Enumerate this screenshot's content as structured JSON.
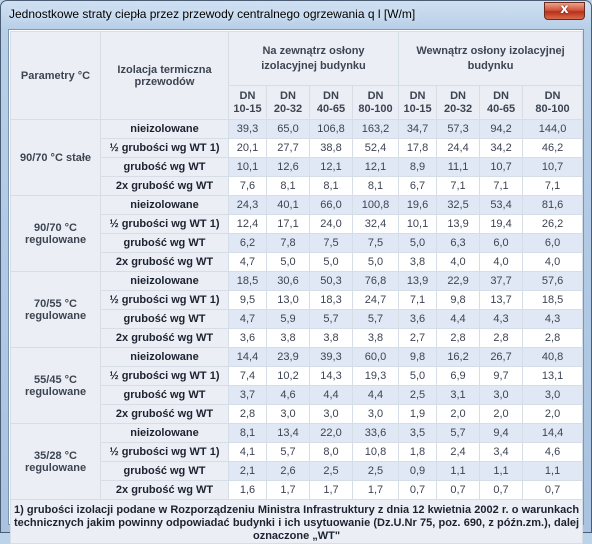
{
  "window": {
    "title": "Jednostkowe straty ciepła przez przewody centralnego ogrzewania q l [W/m]",
    "close_glyph": "x"
  },
  "table": {
    "header_parametry": "Parametry °C",
    "header_izolacja": "Izolacja termiczna przewodów",
    "group_outside": "Na zewnątrz osłony izolacyjnej budynku",
    "group_inside": "Wewnątrz osłony izolacyjnej budynku",
    "dn_columns": [
      {
        "dn": "DN",
        "range": "10-15"
      },
      {
        "dn": "DN",
        "range": "20-32"
      },
      {
        "dn": "DN",
        "range": "40-65"
      },
      {
        "dn": "DN",
        "range": "80-100"
      },
      {
        "dn": "DN",
        "range": "10-15"
      },
      {
        "dn": "DN",
        "range": "20-32"
      },
      {
        "dn": "DN",
        "range": "40-65"
      },
      {
        "dn": "DN",
        "range": "80-100"
      }
    ],
    "groups": [
      {
        "param": "90/70 °C stałe",
        "rows": [
          {
            "izolacja": "nieizolowane",
            "values": [
              "39,3",
              "65,0",
              "106,8",
              "163,2",
              "34,7",
              "57,3",
              "94,2",
              "144,0"
            ]
          },
          {
            "izolacja": "½ grubości wg WT 1)",
            "values": [
              "20,1",
              "27,7",
              "38,8",
              "52,4",
              "17,8",
              "24,4",
              "34,2",
              "46,2"
            ]
          },
          {
            "izolacja": "grubość wg WT",
            "values": [
              "10,1",
              "12,6",
              "12,1",
              "12,1",
              "8,9",
              "11,1",
              "10,7",
              "10,7"
            ]
          },
          {
            "izolacja": "2x grubość wg WT",
            "values": [
              "7,6",
              "8,1",
              "8,1",
              "8,1",
              "6,7",
              "7,1",
              "7,1",
              "7,1"
            ]
          }
        ]
      },
      {
        "param": "90/70 °C regulowane",
        "rows": [
          {
            "izolacja": "nieizolowane",
            "values": [
              "24,3",
              "40,1",
              "66,0",
              "100,8",
              "19,6",
              "32,5",
              "53,4",
              "81,6"
            ]
          },
          {
            "izolacja": "½ grubości wg WT 1)",
            "values": [
              "12,4",
              "17,1",
              "24,0",
              "32,4",
              "10,1",
              "13,9",
              "19,4",
              "26,2"
            ]
          },
          {
            "izolacja": "grubość wg WT",
            "values": [
              "6,2",
              "7,8",
              "7,5",
              "7,5",
              "5,0",
              "6,3",
              "6,0",
              "6,0"
            ]
          },
          {
            "izolacja": "2x grubość wg WT",
            "values": [
              "4,7",
              "5,0",
              "5,0",
              "5,0",
              "3,8",
              "4,0",
              "4,0",
              "4,0"
            ]
          }
        ]
      },
      {
        "param": "70/55 °C regulowane",
        "rows": [
          {
            "izolacja": "nieizolowane",
            "values": [
              "18,5",
              "30,6",
              "50,3",
              "76,8",
              "13,9",
              "22,9",
              "37,7",
              "57,6"
            ]
          },
          {
            "izolacja": "½ grubości wg WT 1)",
            "values": [
              "9,5",
              "13,0",
              "18,3",
              "24,7",
              "7,1",
              "9,8",
              "13,7",
              "18,5"
            ]
          },
          {
            "izolacja": "grubość wg WT",
            "values": [
              "4,7",
              "5,9",
              "5,7",
              "5,7",
              "3,6",
              "4,4",
              "4,3",
              "4,3"
            ]
          },
          {
            "izolacja": "2x grubość wg WT",
            "values": [
              "3,6",
              "3,8",
              "3,8",
              "3,8",
              "2,7",
              "2,8",
              "2,8",
              "2,8"
            ]
          }
        ]
      },
      {
        "param": "55/45 °C regulowane",
        "rows": [
          {
            "izolacja": "nieizolowane",
            "values": [
              "14,4",
              "23,9",
              "39,3",
              "60,0",
              "9,8",
              "16,2",
              "26,7",
              "40,8"
            ]
          },
          {
            "izolacja": "½ grubości wg WT 1)",
            "values": [
              "7,4",
              "10,2",
              "14,3",
              "19,3",
              "5,0",
              "6,9",
              "9,7",
              "13,1"
            ]
          },
          {
            "izolacja": "grubość wg WT",
            "values": [
              "3,7",
              "4,6",
              "4,4",
              "4,4",
              "2,5",
              "3,1",
              "3,0",
              "3,0"
            ]
          },
          {
            "izolacja": "2x grubość wg WT",
            "values": [
              "2,8",
              "3,0",
              "3,0",
              "3,0",
              "1,9",
              "2,0",
              "2,0",
              "2,0"
            ]
          }
        ]
      },
      {
        "param": "35/28 °C regulowane",
        "rows": [
          {
            "izolacja": "nieizolowane",
            "values": [
              "8,1",
              "13,4",
              "22,0",
              "33,6",
              "3,5",
              "5,7",
              "9,4",
              "14,4"
            ]
          },
          {
            "izolacja": "½ grubości wg WT 1)",
            "values": [
              "4,1",
              "5,7",
              "8,0",
              "10,8",
              "1,8",
              "2,4",
              "3,4",
              "4,6"
            ]
          },
          {
            "izolacja": "grubość wg WT",
            "values": [
              "2,1",
              "2,6",
              "2,5",
              "2,5",
              "0,9",
              "1,1",
              "1,1",
              "1,1"
            ]
          },
          {
            "izolacja": "2x grubość wg WT",
            "values": [
              "1,6",
              "1,7",
              "1,7",
              "1,7",
              "0,7",
              "0,7",
              "0,7",
              "0,7"
            ]
          }
        ]
      }
    ],
    "footnote": "1) grubości izolacji podane w Rozporządzeniu Ministra Infrastruktury z dnia 12 kwietnia 2002 r. o warunkach technicznych jakim powinny odpowiadać budynki i ich usytuowanie (Dz.U.Nr 75, poz. 690, z późn.zm.), dalej oznaczone „WT\""
  }
}
